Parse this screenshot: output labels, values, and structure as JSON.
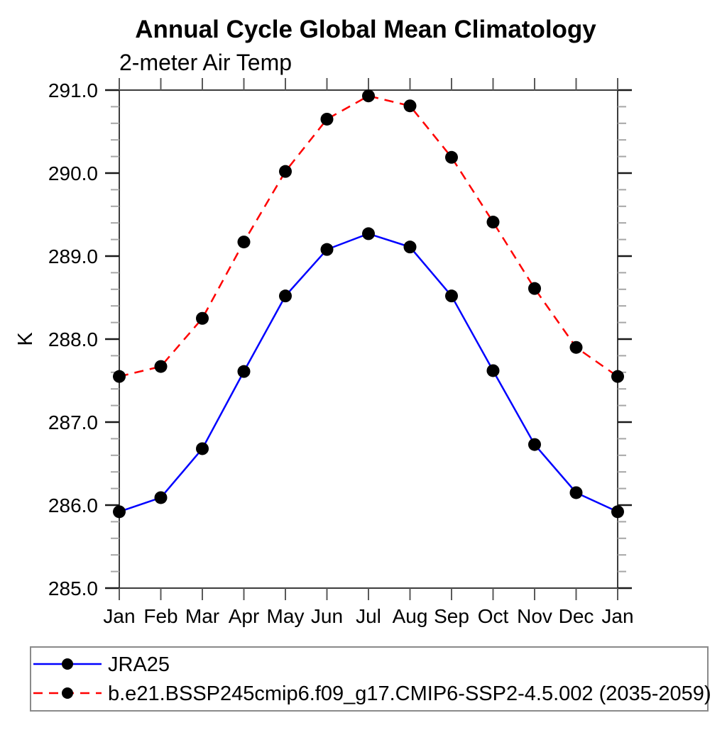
{
  "chart_data": {
    "type": "line",
    "title": "Annual Cycle Global Mean Climatology",
    "subtitle": "2-meter Air Temp",
    "ylabel": "K",
    "xlabel": "",
    "x_categories": [
      "Jan",
      "Feb",
      "Mar",
      "Apr",
      "May",
      "Jun",
      "Jul",
      "Aug",
      "Sep",
      "Oct",
      "Nov",
      "Dec",
      "Jan"
    ],
    "ylim": [
      285.0,
      291.0
    ],
    "y_major_ticks": [
      "285.0",
      "286.0",
      "287.0",
      "288.0",
      "289.0",
      "290.0",
      "291.0"
    ],
    "y_minor_interval": 0.2,
    "grid": "off",
    "legend_position": "bottom-left-box",
    "series": [
      {
        "name": "JRA25",
        "color": "#0000ff",
        "style": "solid",
        "marker": "filled-black-circle",
        "values": [
          285.92,
          286.09,
          286.68,
          287.61,
          288.52,
          289.08,
          289.27,
          289.11,
          288.52,
          287.62,
          286.73,
          286.15,
          285.92
        ]
      },
      {
        "name": "b.e21.BSSP245cmip6.f09_g17.CMIP6-SSP2-4.5.002 (2035-2059)",
        "color": "#ff0000",
        "style": "dashed",
        "marker": "filled-black-circle",
        "values": [
          287.55,
          287.67,
          288.25,
          289.17,
          290.02,
          290.65,
          290.93,
          290.81,
          290.19,
          289.41,
          288.61,
          287.9,
          287.55
        ]
      }
    ]
  },
  "colors": {
    "series1": "#0000ff",
    "series2": "#ff0000",
    "marker": "#000000",
    "frame": "#3c3c3c",
    "major_tick": "#1a1a1a",
    "minor_tick": "#a6a6a6",
    "x_tick": "#5a5a5a",
    "legend_border": "#8a8a8a",
    "background": "#ffffff",
    "text": "#000000"
  }
}
